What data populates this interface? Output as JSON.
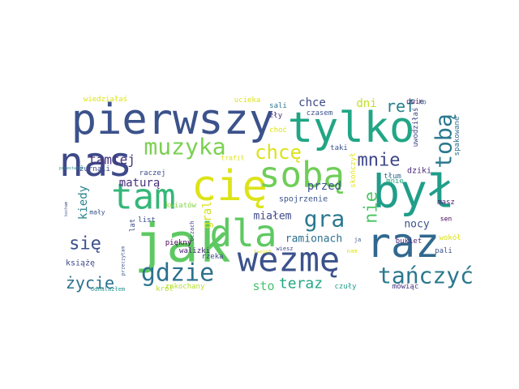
{
  "words": [
    {
      "text": "jak",
      "color": "#5ec962"
    },
    {
      "text": "cię",
      "color": "#dde318"
    },
    {
      "text": "był",
      "color": "#1f9e89"
    },
    {
      "text": "pierwszy",
      "color": "#3b528b"
    },
    {
      "text": "tylko",
      "color": "#21a685"
    },
    {
      "text": "dla",
      "color": "#5ec962"
    },
    {
      "text": "raz",
      "color": "#31688e"
    },
    {
      "text": "nas",
      "color": "#3e4a89"
    },
    {
      "text": "tam",
      "color": "#35b779"
    },
    {
      "text": "sobą",
      "color": "#6ece58"
    },
    {
      "text": "wezmę",
      "color": "#3b528b"
    },
    {
      "text": "muzyka",
      "color": "#7ad151"
    },
    {
      "text": "tobą",
      "color": "#2a788e"
    },
    {
      "text": "gdzie",
      "color": "#2c728e"
    },
    {
      "text": "tańczyć",
      "color": "#2a788e"
    },
    {
      "text": "gra",
      "color": "#2a788e"
    },
    {
      "text": "chcę",
      "color": "#dde318"
    },
    {
      "text": "mnie",
      "color": "#3f4788"
    },
    {
      "text": "się",
      "color": "#3b528b"
    },
    {
      "text": "teraz",
      "color": "#22a884"
    },
    {
      "text": "ref",
      "color": "#26828e"
    },
    {
      "text": "nie",
      "color": "#52c569"
    },
    {
      "text": "życie",
      "color": "#2c728e"
    },
    {
      "text": "grali",
      "color": "#d5e21a"
    },
    {
      "text": "chce",
      "color": "#3e4989"
    },
    {
      "text": "tamtej",
      "color": "#46337e"
    },
    {
      "text": "maturą",
      "color": "#472f7d"
    },
    {
      "text": "kiedy",
      "color": "#26828e"
    },
    {
      "text": "ramionach",
      "color": "#2d708e"
    },
    {
      "text": "przed",
      "color": "#3b528b"
    },
    {
      "text": "nocy",
      "color": "#3b528b"
    },
    {
      "text": "miałem",
      "color": "#3e4989"
    },
    {
      "text": "dni",
      "color": "#c2df23"
    },
    {
      "text": "sto",
      "color": "#48c16e"
    },
    {
      "text": "książę",
      "color": "#3e4989"
    },
    {
      "text": "kwiatów",
      "color": "#86d549"
    },
    {
      "text": "spojrzenie",
      "color": "#3b528b"
    },
    {
      "text": "walizki",
      "color": "#482173"
    },
    {
      "text": "ucieka",
      "color": "#dde318"
    },
    {
      "text": "wiedziałaś",
      "color": "#dde318"
    },
    {
      "text": "zakochany",
      "color": "#b5de2b"
    },
    {
      "text": "czuły",
      "color": "#1f9e89"
    },
    {
      "text": "mówiąc",
      "color": "#46327e"
    },
    {
      "text": "uwodziłaś",
      "color": "#3e4989"
    },
    {
      "text": "spakowane",
      "color": "#2d708e"
    },
    {
      "text": "dwie",
      "color": "#481f70"
    },
    {
      "text": "ko",
      "color": "#2a788e"
    },
    {
      "text": "sali",
      "color": "#2a788e"
    },
    {
      "text": "zły",
      "color": "#46327e"
    },
    {
      "text": "choć",
      "color": "#dde318"
    },
    {
      "text": "czasem",
      "color": "#3b528b"
    },
    {
      "text": "taki",
      "color": "#3b528b"
    },
    {
      "text": "trafił",
      "color": "#dde318"
    },
    {
      "text": "żurnali",
      "color": "#3e4989"
    },
    {
      "text": "raczej",
      "color": "#3e4989"
    },
    {
      "text": "dziki",
      "color": "#482878"
    },
    {
      "text": "tłum",
      "color": "#31688e"
    },
    {
      "text": "sen",
      "color": "#440154"
    },
    {
      "text": "skończył",
      "color": "#e5e419"
    },
    {
      "text": "masz",
      "color": "#481f70"
    },
    {
      "text": "bukiet",
      "color": "#482878"
    },
    {
      "text": "wokół",
      "color": "#dde318"
    },
    {
      "text": "pali",
      "color": "#3b528b"
    },
    {
      "text": "piękny",
      "color": "#440154"
    },
    {
      "text": "list",
      "color": "#3b528b"
    },
    {
      "text": "lat",
      "color": "#3e4989"
    },
    {
      "text": "mały",
      "color": "#3b528b"
    },
    {
      "text": "król",
      "color": "#b5de2b"
    },
    {
      "text": "rzeka",
      "color": "#3e4989"
    },
    {
      "text": "odnalazłem",
      "color": "#21918c"
    },
    {
      "text": "oczach",
      "color": "#3e4989"
    },
    {
      "text": "przeczytam",
      "color": "#3b528b"
    },
    {
      "text": "wiesz",
      "color": "#3e4989"
    },
    {
      "text": "nam",
      "color": "#dde318"
    },
    {
      "text": "ja",
      "color": "#3b528b"
    },
    {
      "text": "twoich",
      "color": "#dde318"
    },
    {
      "text": "przestałaś",
      "color": "#21918c"
    },
    {
      "text": "kocham",
      "color": "#3b528b"
    },
    {
      "text": "mnie",
      "color": "#22a884"
    }
  ]
}
